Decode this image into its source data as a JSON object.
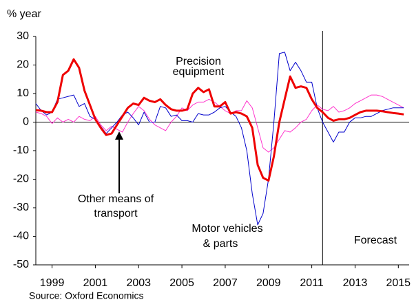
{
  "chart_data": {
    "type": "line",
    "y_axis_label": "% year",
    "source": "Source: Oxford Economics",
    "xlim": [
      1998.75,
      2016
    ],
    "ylim": [
      -50,
      30
    ],
    "yticks": [
      -50,
      -40,
      -30,
      -20,
      -10,
      0,
      10,
      20,
      30
    ],
    "xticks": [
      {
        "value": 1999.5,
        "label": "1999"
      },
      {
        "value": 2001.5,
        "label": "2001"
      },
      {
        "value": 2003.5,
        "label": "2003"
      },
      {
        "value": 2005.5,
        "label": "2005"
      },
      {
        "value": 2007.5,
        "label": "2007"
      },
      {
        "value": 2009.5,
        "label": "2009"
      },
      {
        "value": 2011.5,
        "label": "2011"
      },
      {
        "value": 2013.5,
        "label": "2013"
      },
      {
        "value": 2015.5,
        "label": "2015"
      }
    ],
    "forecast_x": 2012,
    "forecast_label": "Forecast",
    "x": [
      1998.75,
      1999,
      1999.25,
      1999.5,
      1999.75,
      2000,
      2000.25,
      2000.5,
      2000.75,
      2001,
      2001.25,
      2001.5,
      2001.75,
      2002,
      2002.25,
      2002.5,
      2002.75,
      2003,
      2003.25,
      2003.5,
      2003.75,
      2004,
      2004.25,
      2004.5,
      2004.75,
      2005,
      2005.25,
      2005.5,
      2005.75,
      2006,
      2006.25,
      2006.5,
      2006.75,
      2007,
      2007.25,
      2007.5,
      2007.75,
      2008,
      2008.25,
      2008.5,
      2008.75,
      2009,
      2009.25,
      2009.5,
      2009.75,
      2010,
      2010.25,
      2010.5,
      2010.75,
      2011,
      2011.25,
      2011.5,
      2011.75,
      2012,
      2012.25,
      2012.5,
      2012.75,
      2013,
      2013.25,
      2013.5,
      2013.75,
      2014,
      2014.25,
      2014.5,
      2014.75,
      2015,
      2015.25,
      2015.5,
      2015.75
    ],
    "series": [
      {
        "label": [
          "Precision",
          "equipment"
        ],
        "color": "#ff33cc",
        "width": 1,
        "values": [
          3.5,
          3,
          2,
          -0.5,
          1.5,
          0,
          1,
          0,
          2,
          1,
          0.5,
          2,
          -1,
          -3,
          -1.5,
          -2.5,
          -3.5,
          0,
          3,
          5.5,
          4,
          1,
          -1,
          -2,
          -3,
          0,
          2,
          5,
          4,
          6,
          7,
          7,
          8,
          7,
          5.5,
          4,
          3,
          4,
          4,
          7.5,
          5,
          -2,
          -9,
          -10.5,
          -9,
          -6,
          -3,
          -3.5,
          -2,
          0,
          1,
          4,
          6,
          4.5,
          4,
          5.5,
          3.5,
          4,
          5,
          6.5,
          7.5,
          8.5,
          9.5,
          9.5,
          9,
          8,
          7,
          6,
          5
        ]
      },
      {
        "label": [
          "Motor vehicles",
          "& parts"
        ],
        "color": "#0000cc",
        "width": 1,
        "values": [
          6.5,
          4,
          2.5,
          3.5,
          8,
          8.5,
          9,
          9.5,
          5.5,
          6.5,
          2,
          1,
          -1.5,
          -4,
          -2,
          0,
          2.5,
          3.5,
          1.5,
          -1,
          3.5,
          0,
          0,
          5.5,
          5,
          2,
          2.5,
          0.5,
          0.5,
          0,
          3,
          2.5,
          2.5,
          3.5,
          5,
          5.5,
          3.5,
          2,
          -2,
          -10,
          -25,
          -36,
          -32,
          -20,
          0,
          24,
          24.5,
          18,
          21,
          18,
          14,
          14,
          5,
          0,
          -3.5,
          -7,
          -3.5,
          -3.5,
          0,
          1.5,
          1.5,
          2,
          2,
          3,
          4,
          4.5,
          5,
          5,
          5
        ]
      },
      {
        "label": [
          "Other means of",
          "transport"
        ],
        "color": "#ee0000",
        "width": 3,
        "values": [
          4.2,
          4,
          3.5,
          3.5,
          7,
          16.5,
          18,
          22,
          19,
          11,
          6,
          1,
          -2,
          -4.5,
          -4,
          -1,
          2,
          5,
          6.5,
          6,
          8.5,
          7.5,
          7,
          8,
          6,
          4.5,
          4,
          4,
          4.5,
          10,
          12,
          10.5,
          11.5,
          5.5,
          5.5,
          7,
          3,
          3.5,
          3,
          2,
          -2,
          -15,
          -19.5,
          -20.5,
          -12,
          0,
          8,
          16,
          12,
          12.5,
          12,
          8,
          5,
          3.5,
          1.5,
          0.5,
          1,
          1,
          1.5,
          2.5,
          3.5,
          4,
          4,
          4,
          3.8,
          3.5,
          3.2,
          3,
          2.7
        ]
      }
    ]
  }
}
